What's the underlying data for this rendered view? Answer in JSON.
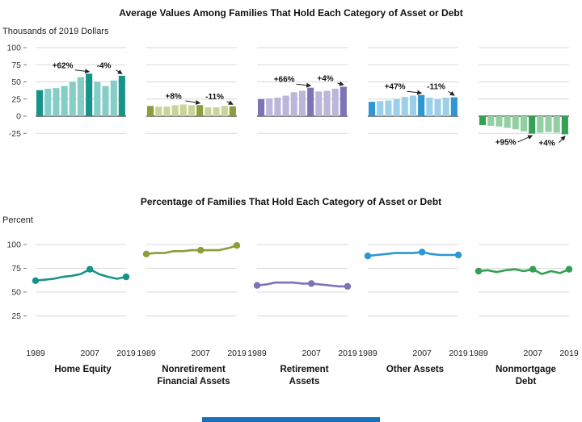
{
  "footer": {
    "color": "#1a6fba"
  },
  "chart_data": [
    {
      "type": "bar",
      "title": "Average Values Among Families That Hold Each Category of Asset or Debt",
      "ylabel": "Thousands of 2019 Dollars",
      "ylim": [
        -35,
        100
      ],
      "y_ticks": [
        100,
        75,
        50,
        25,
        0,
        -25
      ],
      "grid": true,
      "x": [
        1989,
        1992,
        1995,
        1998,
        2001,
        2004,
        2007,
        2010,
        2013,
        2016,
        2019
      ],
      "highlight_years": [
        1989,
        2007,
        2019
      ],
      "series": [
        {
          "name": "Home Equity",
          "color": "#17948a",
          "color_light": "#85cdc6",
          "values": [
            38,
            40,
            41,
            44,
            50,
            57,
            62,
            50,
            44,
            52,
            59
          ],
          "annotations": [
            {
              "text": "+62%",
              "from_year": 1989,
              "to_year": 2007
            },
            {
              "text": "-4%",
              "from_year": 2007,
              "to_year": 2019
            }
          ]
        },
        {
          "name": "Nonretirement Financial Assets",
          "color": "#8a9e3a",
          "color_light": "#c9d49b",
          "values": [
            15,
            14,
            14,
            16,
            17,
            16,
            16.2,
            13,
            13,
            15,
            14.4
          ],
          "annotations": [
            {
              "text": "+8%",
              "from_year": 1989,
              "to_year": 2007
            },
            {
              "text": "-11%",
              "from_year": 2007,
              "to_year": 2019
            }
          ]
        },
        {
          "name": "Retirement Assets",
          "color": "#7d74b8",
          "color_light": "#bcb6da",
          "values": [
            25,
            26,
            27,
            30,
            35,
            37,
            41.5,
            36,
            37,
            40,
            43
          ],
          "annotations": [
            {
              "text": "+66%",
              "from_year": 1989,
              "to_year": 2007
            },
            {
              "text": "+4%",
              "from_year": 2007,
              "to_year": 2019
            }
          ]
        },
        {
          "name": "Other Assets",
          "color": "#2e96d2",
          "color_light": "#9ccfea",
          "values": [
            21,
            22,
            23,
            25,
            28,
            30,
            31,
            27,
            25,
            27,
            27.5
          ],
          "annotations": [
            {
              "text": "+47%",
              "from_year": 1989,
              "to_year": 2007
            },
            {
              "text": "-11%",
              "from_year": 2007,
              "to_year": 2019
            }
          ]
        },
        {
          "name": "Nonmortgage Debt",
          "color": "#33a053",
          "color_light": "#93cfa2",
          "values": [
            -13,
            -14,
            -15,
            -17,
            -19,
            -22,
            -25.4,
            -24,
            -23,
            -24,
            -26.4
          ],
          "annotations": [
            {
              "text": "+95%",
              "from_year": 1989,
              "to_year": 2007
            },
            {
              "text": "+4%",
              "from_year": 2007,
              "to_year": 2019
            }
          ]
        }
      ]
    },
    {
      "type": "line",
      "title": "Percentage of Families That Hold Each Category of Asset or Debt",
      "ylabel": "Percent",
      "ylim": [
        0,
        110
      ],
      "y_ticks": [
        100,
        75,
        50,
        25
      ],
      "grid": true,
      "x": [
        1989,
        1992,
        1995,
        1998,
        2001,
        2004,
        2007,
        2010,
        2013,
        2016,
        2019
      ],
      "x_tick_labels": [
        "1989",
        "2007",
        "2019"
      ],
      "marker_years": [
        1989,
        2007,
        2019
      ],
      "series": [
        {
          "name": "Home Equity",
          "color": "#17948a",
          "values": [
            62,
            63,
            64,
            66,
            67,
            69,
            74,
            69,
            66,
            64,
            66
          ]
        },
        {
          "name": "Nonretirement Financial Assets",
          "color": "#8a9e3a",
          "values": [
            90,
            91,
            91,
            93,
            93,
            94,
            94,
            94,
            94,
            96,
            99
          ]
        },
        {
          "name": "Retirement Assets",
          "color": "#7d74b8",
          "values": [
            57,
            58,
            60,
            60,
            60,
            59,
            59,
            58,
            57,
            56,
            56
          ]
        },
        {
          "name": "Other Assets",
          "color": "#2e96d2",
          "values": [
            88,
            89,
            90,
            91,
            91,
            91,
            92,
            90,
            89,
            89,
            89
          ]
        },
        {
          "name": "Nonmortgage Debt",
          "color": "#33a053",
          "values": [
            72,
            73,
            71,
            73,
            74,
            72,
            74,
            69,
            72,
            70,
            74
          ]
        }
      ]
    }
  ]
}
